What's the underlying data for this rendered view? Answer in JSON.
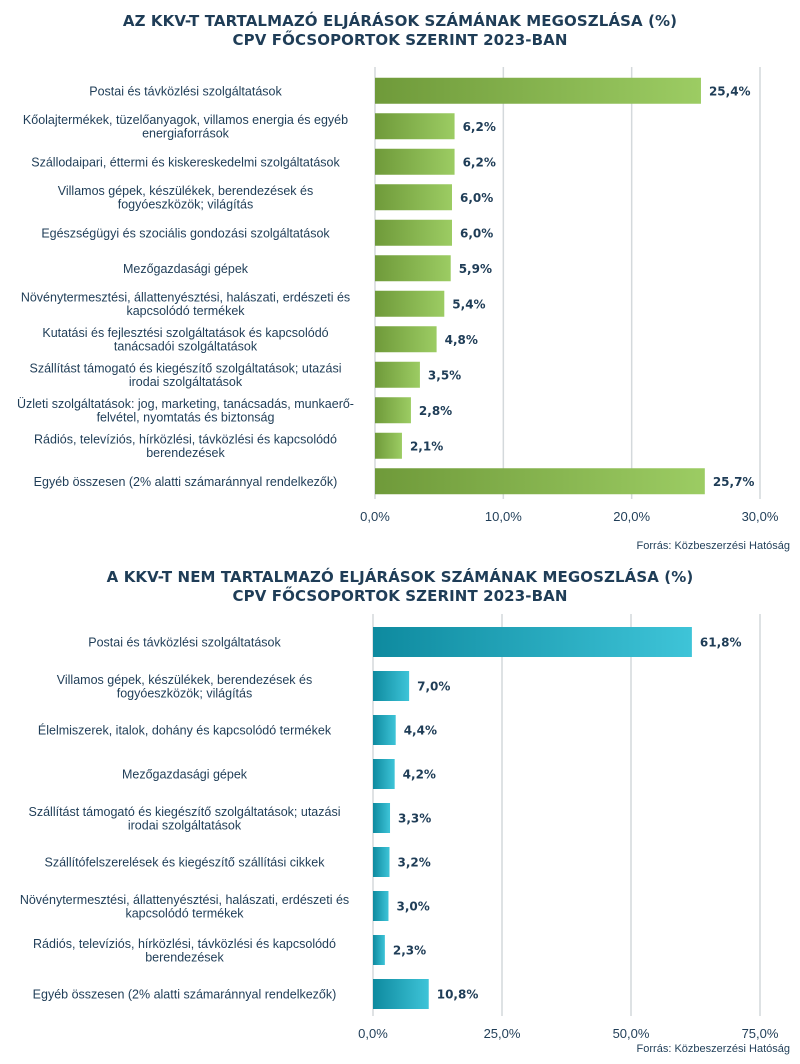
{
  "chart_data": [
    {
      "type": "bar",
      "orientation": "horizontal",
      "title_lines": [
        "AZ KKV-T TARTALMAZÓ ELJÁRÁSOK SZÁMÁNAK MEGOSZLÁSA (%)",
        "CPV FŐCSOPORTOK SZERINT 2023-BAN"
      ],
      "categories": [
        [
          "Postai és távközlési szolgáltatások"
        ],
        [
          "Kőolajtermékek, tüzelőanyagok, villamos energia és egyéb",
          "energiaforrások"
        ],
        [
          "Szállodaipari, éttermi és kiskereskedelmi szolgáltatások"
        ],
        [
          "Villamos gépek, készülékek, berendezések és",
          "fogyóeszközök; világítás"
        ],
        [
          "Egészségügyi és szociális gondozási szolgáltatások"
        ],
        [
          "Mezőgazdasági gépek"
        ],
        [
          "Növénytermesztési, állattenyésztési, halászati, erdészeti és",
          "kapcsolódó termékek"
        ],
        [
          "Kutatási és fejlesztési szolgáltatások és kapcsolódó",
          "tanácsadói szolgáltatások"
        ],
        [
          "Szállítást támogató és kiegészítő szolgáltatások; utazási",
          "irodai szolgáltatások"
        ],
        [
          "Üzleti szolgáltatások: jog, marketing, tanácsadás, munkaerő-",
          "felvétel, nyomtatás és biztonság"
        ],
        [
          "Rádiós, televíziós, hírközlési, távközlési és kapcsolódó",
          "berendezések"
        ],
        [
          "Egyéb összesen (2% alatti számaránnyal rendelkezők)"
        ]
      ],
      "values": [
        25.4,
        6.2,
        6.2,
        6.0,
        6.0,
        5.9,
        5.4,
        4.8,
        3.5,
        2.8,
        2.1,
        25.7
      ],
      "value_labels": [
        "25,4%",
        "6,2%",
        "6,2%",
        "6,0%",
        "6,0%",
        "5,9%",
        "5,4%",
        "4,8%",
        "3,5%",
        "2,8%",
        "2,1%",
        "25,7%"
      ],
      "xlim": [
        0,
        30
      ],
      "xticks": [
        0,
        10,
        20,
        30
      ],
      "xtick_labels": [
        "0,0%",
        "10,0%",
        "20,0%",
        "30,0%"
      ],
      "grid": true,
      "colors": {
        "start": "#6f9a3a",
        "end": "#9ccc63"
      },
      "source": "Forrás: Közbeszerzési Hatóság"
    },
    {
      "type": "bar",
      "orientation": "horizontal",
      "title_lines": [
        "A KKV-T NEM TARTALMAZÓ ELJÁRÁSOK SZÁMÁNAK MEGOSZLÁSA (%)",
        "CPV FŐCSOPORTOK SZERINT 2023-BAN"
      ],
      "categories": [
        [
          "Postai és távközlési szolgáltatások"
        ],
        [
          "Villamos gépek, készülékek, berendezések és",
          "fogyóeszközök; világítás"
        ],
        [
          "Élelmiszerek, italok, dohány és kapcsolódó termékek"
        ],
        [
          "Mezőgazdasági gépek"
        ],
        [
          "Szállítást támogató és kiegészítő szolgáltatások; utazási",
          "irodai szolgáltatások"
        ],
        [
          "Szállítófelszerelések és kiegészítő szállítási cikkek"
        ],
        [
          "Növénytermesztési, állattenyésztési, halászati, erdészeti és",
          "kapcsolódó termékek"
        ],
        [
          "Rádiós, televíziós, hírközlési, távközlési és kapcsolódó",
          "berendezések"
        ],
        [
          "Egyéb összesen (2% alatti számaránnyal rendelkezők)"
        ]
      ],
      "values": [
        61.8,
        7.0,
        4.4,
        4.2,
        3.3,
        3.2,
        3.0,
        2.3,
        10.8
      ],
      "value_labels": [
        "61,8%",
        "7,0%",
        "4,4%",
        "4,2%",
        "3,3%",
        "3,2%",
        "3,0%",
        "2,3%",
        "10,8%"
      ],
      "xlim": [
        0,
        75
      ],
      "xticks": [
        0,
        25,
        50,
        75
      ],
      "xtick_labels": [
        "0,0%",
        "25,0%",
        "50,0%",
        "75,0%"
      ],
      "grid": true,
      "colors": {
        "start": "#0e8a9f",
        "end": "#3ec4d8"
      },
      "source": "Forrás: Közbeszerzési Hatóság"
    }
  ]
}
